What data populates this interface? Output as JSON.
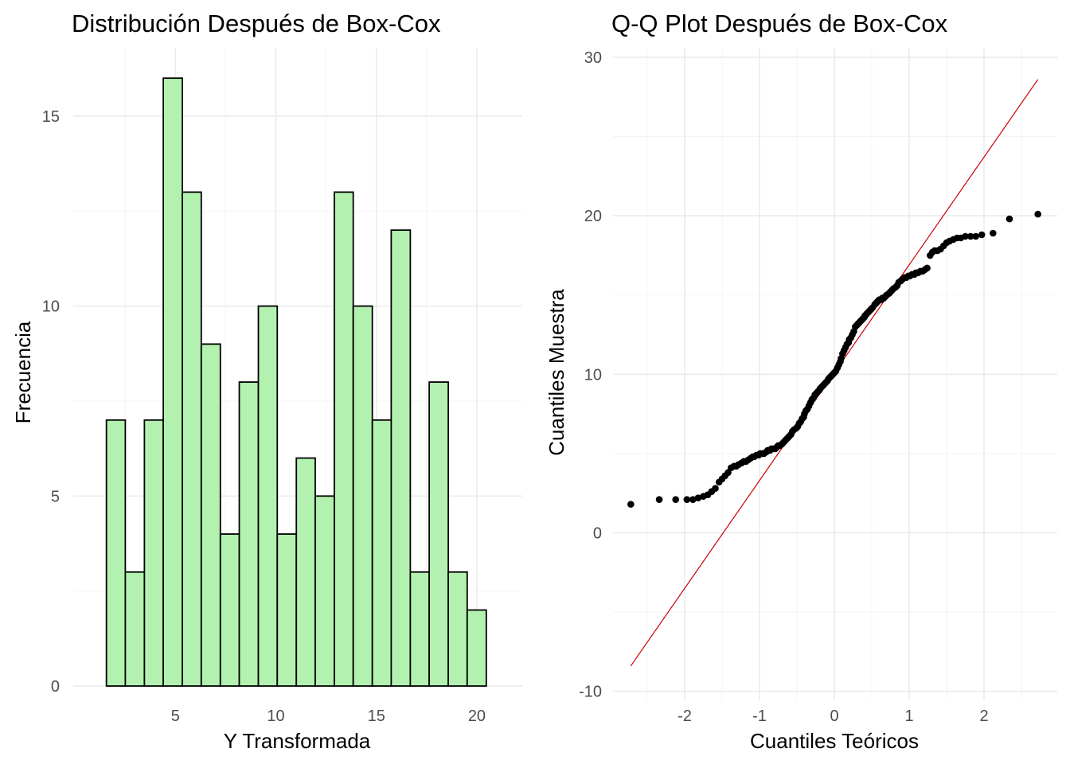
{
  "chart_data": [
    {
      "type": "bar",
      "title": "Distribución Después de Box-Cox",
      "xlabel": "Y Transformada",
      "ylabel": "Frecuencia",
      "bin_edges": [
        1.57,
        2.51,
        3.46,
        4.4,
        5.35,
        6.29,
        7.24,
        8.18,
        9.13,
        10.07,
        11.02,
        11.96,
        12.91,
        13.85,
        14.8,
        15.74,
        16.69,
        17.63,
        18.58,
        19.52,
        20.47
      ],
      "values": [
        7,
        3,
        7,
        16,
        13,
        9,
        4,
        8,
        10,
        4,
        6,
        5,
        13,
        10,
        7,
        12,
        3,
        8,
        3,
        2
      ],
      "xlim": [
        -0.08,
        22.26
      ],
      "ylim": [
        0,
        16.8
      ],
      "x_ticks": [
        5,
        10,
        15,
        20
      ],
      "y_ticks": [
        0,
        5,
        10,
        15
      ],
      "fill_color": "#b3f1b0",
      "border_color": "#000000",
      "grid": true
    },
    {
      "type": "scatter",
      "title": "Q-Q Plot Después de Box-Cox",
      "xlabel": "Cuantiles Teóricos",
      "ylabel": "Cuantiles Muestra",
      "xlim": [
        -3.0,
        3.0
      ],
      "ylim": [
        -10,
        30
      ],
      "x_ticks": [
        -2,
        -1,
        0,
        1,
        2
      ],
      "y_ticks": [
        -10,
        0,
        10,
        20,
        30
      ],
      "reference_line": {
        "x": [
          -2.72,
          2.72
        ],
        "y": [
          -8.4,
          28.6
        ],
        "color": "#cc0000"
      },
      "point_color": "#000000",
      "grid": true,
      "points": [
        [
          -2.72,
          1.8
        ],
        [
          -2.34,
          2.1
        ],
        [
          -2.12,
          2.1
        ],
        [
          -1.97,
          2.1
        ],
        [
          -1.89,
          2.1
        ],
        [
          -1.82,
          2.2
        ],
        [
          -1.75,
          2.3
        ],
        [
          -1.69,
          2.4
        ],
        [
          -1.64,
          2.6
        ],
        [
          -1.59,
          2.8
        ],
        [
          -1.54,
          3.2
        ],
        [
          -1.5,
          3.4
        ],
        [
          -1.46,
          3.6
        ],
        [
          -1.42,
          3.8
        ],
        [
          -1.38,
          4.1
        ],
        [
          -1.34,
          4.2
        ],
        [
          -1.31,
          4.2
        ],
        [
          -1.28,
          4.3
        ],
        [
          -1.24,
          4.4
        ],
        [
          -1.21,
          4.5
        ],
        [
          -1.18,
          4.5
        ],
        [
          -1.15,
          4.6
        ],
        [
          -1.12,
          4.7
        ],
        [
          -1.09,
          4.8
        ],
        [
          -1.07,
          4.8
        ],
        [
          -1.04,
          4.9
        ],
        [
          -1.01,
          4.9
        ],
        [
          -0.99,
          5.0
        ],
        [
          -0.96,
          5.0
        ],
        [
          -0.94,
          5.0
        ],
        [
          -0.91,
          5.1
        ],
        [
          -0.89,
          5.2
        ],
        [
          -0.86,
          5.2
        ],
        [
          -0.84,
          5.3
        ],
        [
          -0.82,
          5.3
        ],
        [
          -0.79,
          5.3
        ],
        [
          -0.77,
          5.4
        ],
        [
          -0.75,
          5.5
        ],
        [
          -0.73,
          5.5
        ],
        [
          -0.7,
          5.6
        ],
        [
          -0.68,
          5.7
        ],
        [
          -0.66,
          5.8
        ],
        [
          -0.64,
          5.9
        ],
        [
          -0.62,
          6.0
        ],
        [
          -0.6,
          6.1
        ],
        [
          -0.58,
          6.2
        ],
        [
          -0.56,
          6.4
        ],
        [
          -0.54,
          6.5
        ],
        [
          -0.51,
          6.6
        ],
        [
          -0.49,
          6.7
        ],
        [
          -0.47,
          6.9
        ],
        [
          -0.45,
          7.0
        ],
        [
          -0.43,
          7.2
        ],
        [
          -0.41,
          7.3
        ],
        [
          -0.4,
          7.5
        ],
        [
          -0.38,
          7.7
        ],
        [
          -0.36,
          7.8
        ],
        [
          -0.34,
          8.0
        ],
        [
          -0.32,
          8.2
        ],
        [
          -0.3,
          8.4
        ],
        [
          -0.28,
          8.5
        ],
        [
          -0.26,
          8.7
        ],
        [
          -0.24,
          8.8
        ],
        [
          -0.22,
          8.9
        ],
        [
          -0.2,
          9.0
        ],
        [
          -0.19,
          9.1
        ],
        [
          -0.17,
          9.2
        ],
        [
          -0.15,
          9.3
        ],
        [
          -0.13,
          9.4
        ],
        [
          -0.11,
          9.5
        ],
        [
          -0.09,
          9.6
        ],
        [
          -0.08,
          9.7
        ],
        [
          -0.06,
          9.8
        ],
        [
          -0.04,
          9.9
        ],
        [
          -0.02,
          10.0
        ],
        [
          0.0,
          10.1
        ],
        [
          0.02,
          10.2
        ],
        [
          0.04,
          10.4
        ],
        [
          0.06,
          10.6
        ],
        [
          0.08,
          10.8
        ],
        [
          0.09,
          11.0
        ],
        [
          0.11,
          11.3
        ],
        [
          0.13,
          11.5
        ],
        [
          0.15,
          11.7
        ],
        [
          0.17,
          11.9
        ],
        [
          0.19,
          12.0
        ],
        [
          0.2,
          12.2
        ],
        [
          0.22,
          12.3
        ],
        [
          0.24,
          12.5
        ],
        [
          0.26,
          12.7
        ],
        [
          0.28,
          13.0
        ],
        [
          0.3,
          13.1
        ],
        [
          0.32,
          13.2
        ],
        [
          0.34,
          13.3
        ],
        [
          0.36,
          13.4
        ],
        [
          0.38,
          13.5
        ],
        [
          0.4,
          13.6
        ],
        [
          0.41,
          13.7
        ],
        [
          0.43,
          13.8
        ],
        [
          0.45,
          13.9
        ],
        [
          0.47,
          14.0
        ],
        [
          0.49,
          14.1
        ],
        [
          0.51,
          14.2
        ],
        [
          0.54,
          14.4
        ],
        [
          0.56,
          14.5
        ],
        [
          0.58,
          14.6
        ],
        [
          0.6,
          14.7
        ],
        [
          0.62,
          14.7
        ],
        [
          0.64,
          14.8
        ],
        [
          0.66,
          14.8
        ],
        [
          0.68,
          14.9
        ],
        [
          0.7,
          15.0
        ],
        [
          0.73,
          15.1
        ],
        [
          0.75,
          15.2
        ],
        [
          0.77,
          15.3
        ],
        [
          0.79,
          15.4
        ],
        [
          0.82,
          15.5
        ],
        [
          0.84,
          15.6
        ],
        [
          0.86,
          15.8
        ],
        [
          0.89,
          15.9
        ],
        [
          0.91,
          16.0
        ],
        [
          0.94,
          16.1
        ],
        [
          0.96,
          16.1
        ],
        [
          0.99,
          16.2
        ],
        [
          1.01,
          16.2
        ],
        [
          1.04,
          16.3
        ],
        [
          1.07,
          16.3
        ],
        [
          1.09,
          16.4
        ],
        [
          1.12,
          16.4
        ],
        [
          1.15,
          16.5
        ],
        [
          1.18,
          16.5
        ],
        [
          1.21,
          16.6
        ],
        [
          1.24,
          16.7
        ],
        [
          1.28,
          17.5
        ],
        [
          1.31,
          17.7
        ],
        [
          1.34,
          17.8
        ],
        [
          1.38,
          17.8
        ],
        [
          1.42,
          17.9
        ],
        [
          1.46,
          18.1
        ],
        [
          1.5,
          18.3
        ],
        [
          1.54,
          18.4
        ],
        [
          1.59,
          18.5
        ],
        [
          1.64,
          18.6
        ],
        [
          1.69,
          18.6
        ],
        [
          1.75,
          18.7
        ],
        [
          1.82,
          18.7
        ],
        [
          1.89,
          18.7
        ],
        [
          1.97,
          18.8
        ],
        [
          2.12,
          18.9
        ],
        [
          2.34,
          19.8
        ],
        [
          2.72,
          20.1
        ]
      ]
    }
  ]
}
